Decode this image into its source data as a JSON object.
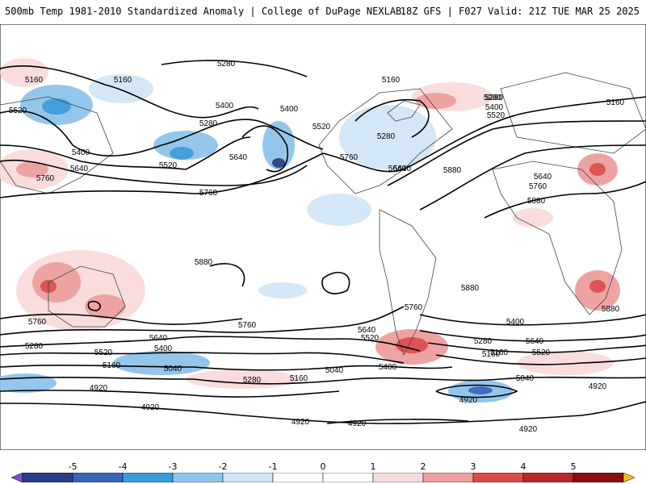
{
  "header": {
    "title": "500mb Temp 1981-2010 Standardized Anomaly | College of DuPage NEXLAB",
    "run_info": "18Z GFS | F027 Valid: 21Z TUE MAR 25 2025"
  },
  "map": {
    "contour_labels": [
      "5280",
      "5160",
      "5520",
      "5400",
      "5640",
      "5760",
      "5280",
      "5160",
      "5400",
      "5280",
      "5520",
      "5640",
      "5760",
      "5400",
      "5640",
      "5520",
      "5280",
      "5760",
      "5640",
      "5160",
      "5280",
      "5400",
      "5520",
      "5160",
      "5880",
      "5640",
      "5760",
      "5880",
      "5880",
      "5880",
      "5760",
      "5880",
      "5760",
      "5760",
      "5640",
      "5520",
      "5400",
      "5280",
      "5160",
      "5040",
      "4920",
      "4920",
      "4920",
      "5640",
      "5520",
      "5280",
      "5400",
      "5160",
      "5280",
      "5160",
      "5040",
      "5640",
      "5520",
      "5400",
      "5160",
      "5040",
      "4920",
      "4920",
      "4920",
      "4920"
    ]
  },
  "colorbar": {
    "ticks": [
      "-5",
      "-4",
      "-3",
      "-2",
      "-1",
      "0",
      "1",
      "2",
      "3",
      "4",
      "5"
    ],
    "colors": [
      "#7b50c9",
      "#2a3f86",
      "#3a64b8",
      "#3a9bdc",
      "#8fc4ea",
      "#d2e6f6",
      "#ffffff",
      "#ffffff",
      "#f9dcdc",
      "#ee9f9f",
      "#dd4a4a",
      "#b8282a",
      "#8a0c10",
      "#f0c020"
    ]
  }
}
